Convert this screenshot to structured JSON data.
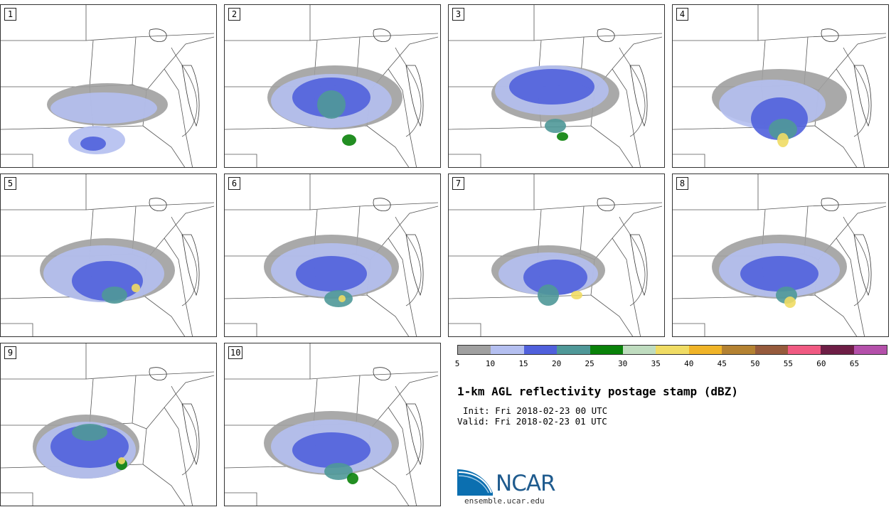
{
  "panels": [
    {
      "label": "1"
    },
    {
      "label": "2"
    },
    {
      "label": "3"
    },
    {
      "label": "4"
    },
    {
      "label": "5"
    },
    {
      "label": "6"
    },
    {
      "label": "7"
    },
    {
      "label": "8"
    },
    {
      "label": "9"
    },
    {
      "label": "10"
    }
  ],
  "colorbar": {
    "colors": [
      "#a0a0a0",
      "#b4bff0",
      "#5060dc",
      "#4f9898",
      "#0a820a",
      "#bfdcbf",
      "#f0dc64",
      "#f0b428",
      "#b48232",
      "#965a3c",
      "#f05a82",
      "#6e1e46",
      "#b450aa"
    ],
    "ticks": [
      "5",
      "10",
      "15",
      "20",
      "25",
      "30",
      "35",
      "40",
      "45",
      "50",
      "55",
      "60",
      "65"
    ]
  },
  "title": "1-km AGL reflectivity postage stamp (dBZ)",
  "init": "Init: Fri 2018-02-23 00 UTC",
  "valid": "Valid: Fri 2018-02-23 01 UTC",
  "logo": {
    "text": "NCAR",
    "url": "ensemble.ucar.edu"
  },
  "colors": {
    "light_blue": "#b4bff0",
    "blue": "#5060dc",
    "gray": "#a0a0a0",
    "teal": "#4f9898",
    "green": "#0a820a",
    "yellow": "#f0dc64"
  }
}
